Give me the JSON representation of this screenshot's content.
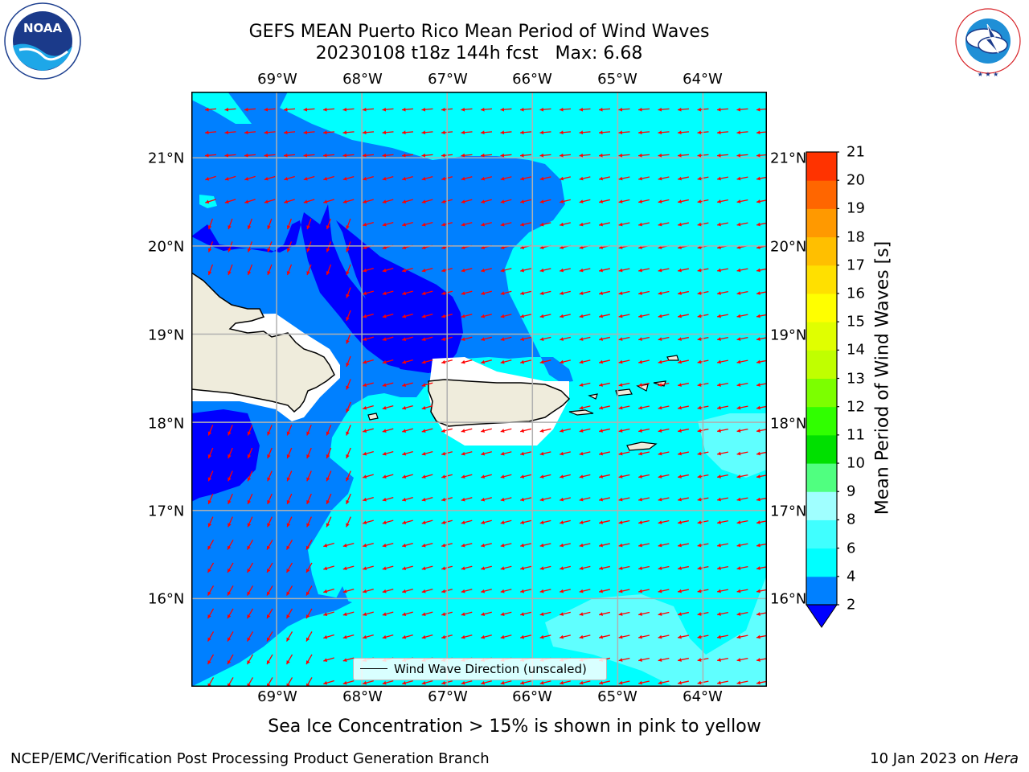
{
  "header": {
    "title_line1": "GEFS MEAN Puerto Rico Mean Period of Wind Waves",
    "title_line2": "20230108 t18z 144h fcst   Max: 6.68"
  },
  "logos": {
    "left": {
      "name": "noaa-logo",
      "wordmark": "NOAA",
      "ring_text": "NATIONAL OCEANIC AND ATMOSPHERIC ADMINISTRATION · U.S. DEPARTMENT OF COMMERCE"
    },
    "right": {
      "name": "nws-logo",
      "ring_text": "NATIONAL WEATHER SERVICE"
    }
  },
  "map": {
    "region": "Puerto Rico",
    "lon_range": [
      -70.0,
      -63.25
    ],
    "lat_range": [
      15.0,
      21.75
    ],
    "lon_ticks": [
      "69°W",
      "68°W",
      "67°W",
      "66°W",
      "65°W",
      "64°W"
    ],
    "lat_ticks": [
      "21°N",
      "20°N",
      "19°N",
      "18°N",
      "17°N",
      "16°N"
    ],
    "grid": true,
    "colors": {
      "land": "#efecdc",
      "coast": "#000000",
      "arrow": "#ff0000",
      "gridline": "#b0b0b0"
    }
  },
  "legend": {
    "label": "Wind Wave Direction (unscaled)",
    "placement": "bottom-center"
  },
  "colorbar": {
    "title": "Mean Period of Wind Waves [s]",
    "ticks": [
      "2",
      "4",
      "6",
      "8",
      "9",
      "10",
      "11",
      "12",
      "13",
      "14",
      "15",
      "16",
      "17",
      "18",
      "19",
      "20",
      "21"
    ],
    "colors": [
      "#0080ff",
      "#00ffff",
      "#40ffff",
      "#a0ffff",
      "#50ff80",
      "#00e000",
      "#30ff00",
      "#7cff00",
      "#c0ff00",
      "#e0ff00",
      "#ffff00",
      "#ffe000",
      "#ffbf00",
      "#ff9900",
      "#ff6600",
      "#ff3300",
      "#ff0000"
    ],
    "extend_min_color": "#0000ff"
  },
  "notes": {
    "ice": "Sea Ice Concentration > 15% is shown in pink to yellow"
  },
  "footer": {
    "left": "NCEP/EMC/Verification Post Processing Product Generation Branch",
    "right_date": "10 Jan 2023 on ",
    "right_host": "Hera"
  }
}
